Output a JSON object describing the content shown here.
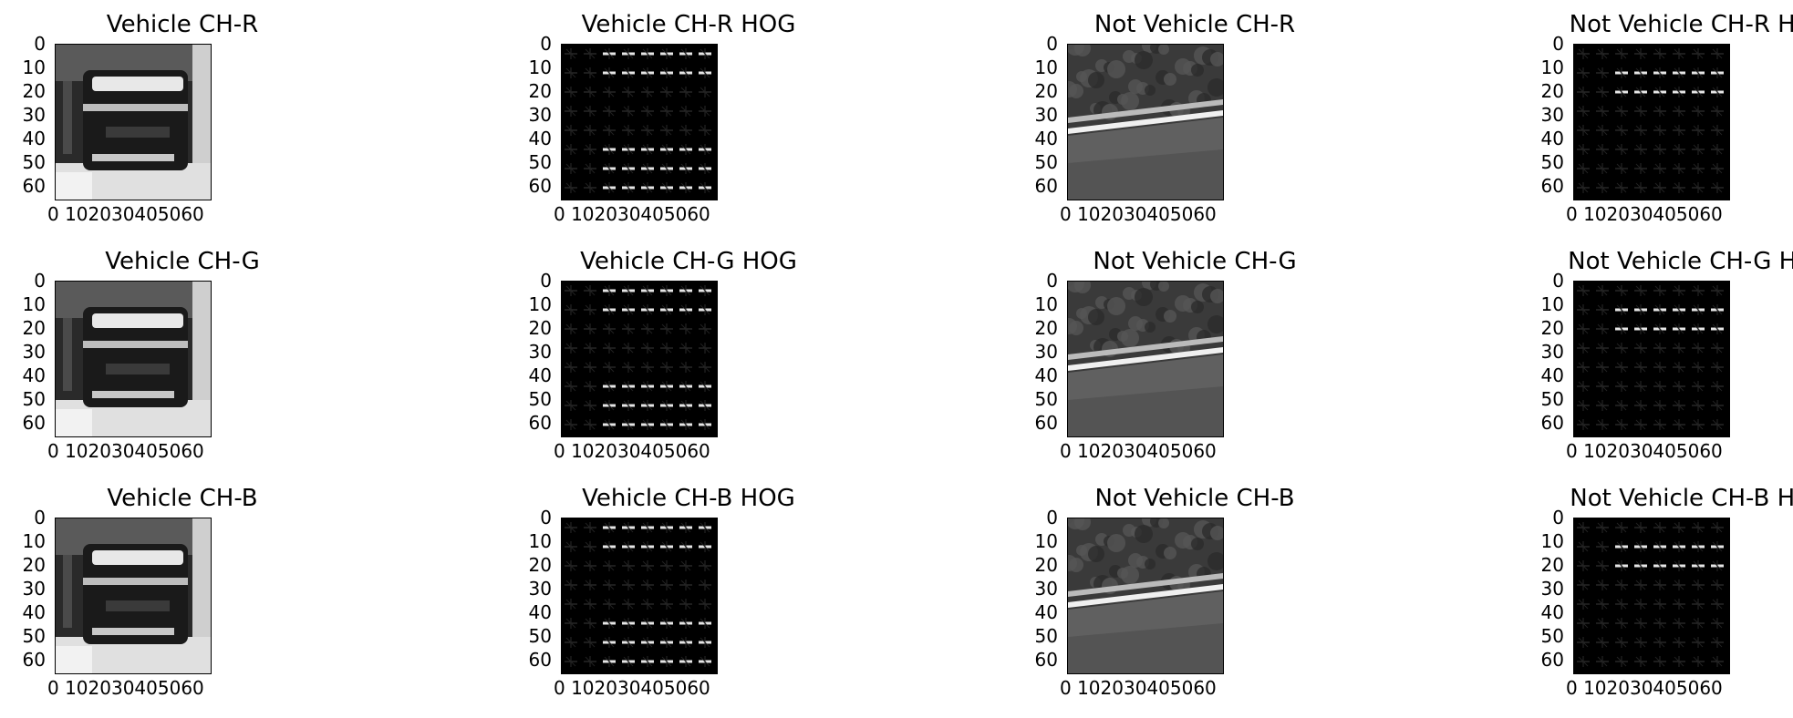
{
  "panels": [
    {
      "title": "Vehicle CH-R",
      "kind": "car",
      "channel": "R"
    },
    {
      "title": "Vehicle CH-R HOG",
      "kind": "carhog",
      "channel": "R"
    },
    {
      "title": "Not Vehicle CH-R",
      "kind": "road",
      "channel": "R"
    },
    {
      "title": "Not Vehicle CH-R HOG",
      "kind": "roadhog",
      "channel": "R"
    },
    {
      "title": "Vehicle CH-G",
      "kind": "car",
      "channel": "G"
    },
    {
      "title": "Vehicle CH-G HOG",
      "kind": "carhog",
      "channel": "G"
    },
    {
      "title": "Not Vehicle CH-G",
      "kind": "road",
      "channel": "G"
    },
    {
      "title": "Not Vehicle CH-G HOG",
      "kind": "roadhog",
      "channel": "G"
    },
    {
      "title": "Vehicle CH-B",
      "kind": "car",
      "channel": "B"
    },
    {
      "title": "Vehicle CH-B HOG",
      "kind": "carhog",
      "channel": "B"
    },
    {
      "title": "Not Vehicle CH-B",
      "kind": "road",
      "channel": "B"
    },
    {
      "title": "Not Vehicle CH-B HOG",
      "kind": "roadhog",
      "channel": "B"
    }
  ],
  "axes": {
    "y_ticks": [
      "0",
      "10",
      "20",
      "30",
      "40",
      "50",
      "60"
    ],
    "x_tick_text": "0 102030405060"
  }
}
